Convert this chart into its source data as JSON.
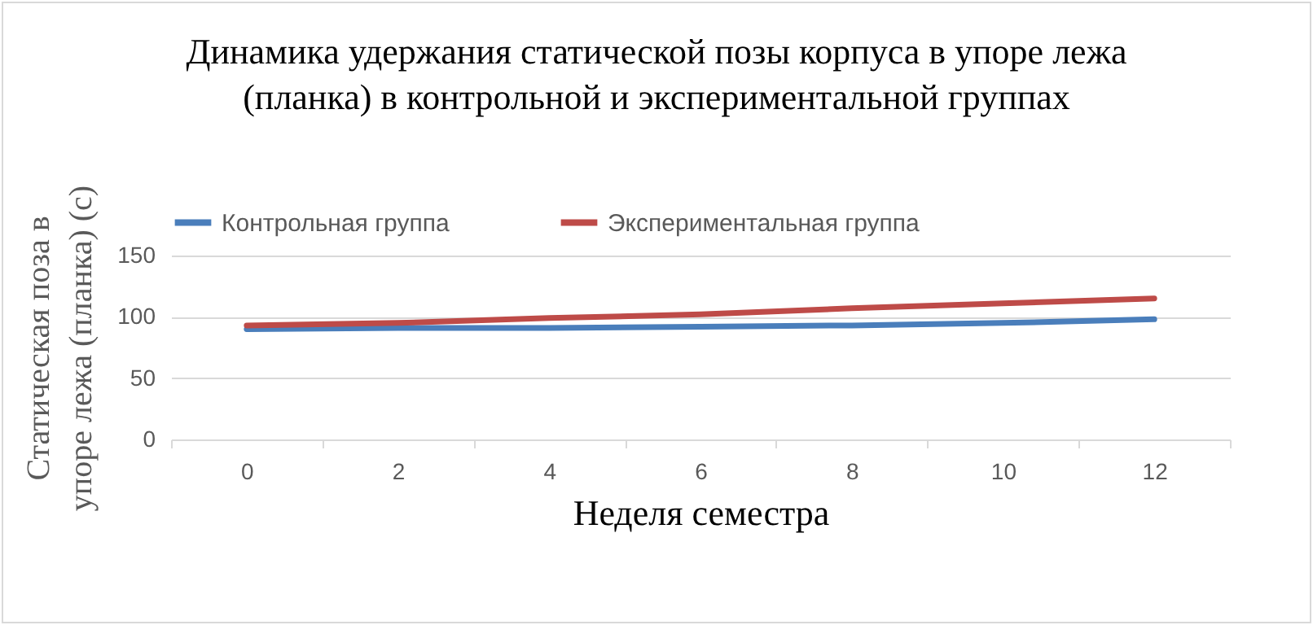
{
  "chart_data": {
    "type": "line",
    "title": "Динамика удержания статической позы корпуса в упоре лежа (планка) в контрольной и экспериментальной группах",
    "xlabel": "Неделя семестра",
    "ylabel": "Статическая поза в упоре лежа (планка) (с)",
    "categories": [
      "0",
      "2",
      "4",
      "6",
      "8",
      "10",
      "12"
    ],
    "series": [
      {
        "name": "Контрольная группа",
        "color": "#4a7ebb",
        "values": [
          90,
          91,
          91,
          92,
          93,
          95,
          98
        ]
      },
      {
        "name": "Экспериментальная группа",
        "color": "#be4b48",
        "values": [
          93,
          95,
          99,
          102,
          107,
          111,
          115
        ]
      }
    ],
    "ylim": [
      0,
      150
    ],
    "yticks": [
      0,
      50,
      100,
      150
    ],
    "grid": "y",
    "legend": "top",
    "marker": "none",
    "line_style": "solid"
  }
}
